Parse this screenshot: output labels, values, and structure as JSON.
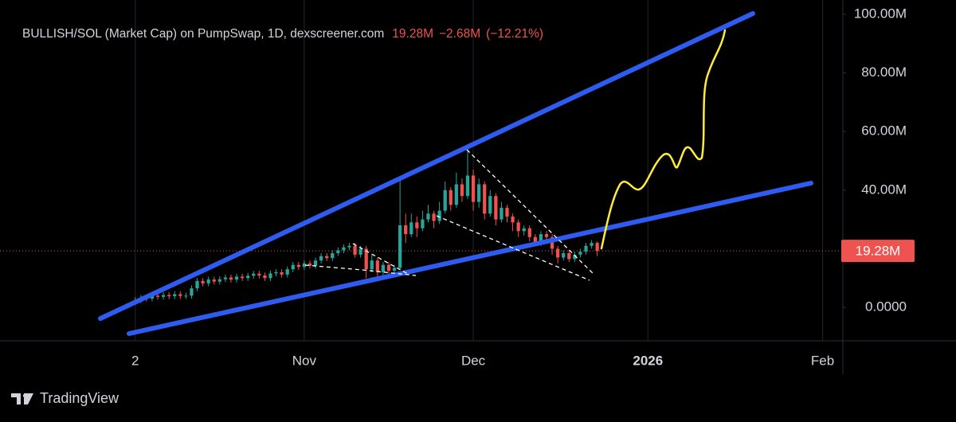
{
  "chart_data": {
    "type": "candlestick",
    "title": "BULLISH/SOL (Market Cap) on PumpSwap, 1D, dexscreener.com",
    "legend_values": [
      "19.28M",
      "−2.68M",
      "(−12.21%)"
    ],
    "footer": "TradingView",
    "up_color": "#26a69a",
    "down_color": "#ef5350",
    "xgrid": true,
    "xlim": [
      -24,
      125.6
    ],
    "xticks": [
      {
        "value": 0,
        "label": "2"
      },
      {
        "value": 30,
        "label": "Nov"
      },
      {
        "value": 60,
        "label": "Dec"
      },
      {
        "value": 91,
        "label": "2026"
      },
      {
        "value": 122,
        "label": "Feb"
      }
    ],
    "ylim": [
      -11.4,
      104.9
    ],
    "yticks": [
      {
        "value": 0,
        "label": "0.0000"
      },
      {
        "value": 40,
        "label": "40.00M"
      },
      {
        "value": 60,
        "label": "60.00M"
      },
      {
        "value": 80,
        "label": "80.00M"
      },
      {
        "value": 100,
        "label": "100.00M"
      }
    ],
    "last_price": {
      "value": 19.28,
      "label": "19.28M"
    },
    "x": [
      0,
      1,
      2,
      3,
      4,
      5,
      6,
      7,
      8,
      9,
      10,
      11,
      12,
      13,
      14,
      15,
      16,
      17,
      18,
      19,
      20,
      21,
      22,
      23,
      24,
      25,
      26,
      27,
      28,
      29,
      30,
      31,
      32,
      33,
      34,
      35,
      36,
      37,
      38,
      39,
      40,
      41,
      42,
      43,
      44,
      45,
      46,
      47,
      48,
      49,
      50,
      51,
      52,
      53,
      54,
      55,
      56,
      57,
      58,
      59,
      60,
      61,
      62,
      63,
      64,
      65,
      66,
      67,
      68,
      69,
      70,
      71,
      72,
      73,
      74,
      75,
      76,
      77,
      78,
      79,
      80,
      81,
      82
    ],
    "open": [
      2.0,
      2.5,
      3.2,
      3.0,
      4.0,
      3.6,
      4.2,
      3.8,
      4.5,
      3.9,
      4.0,
      6.5,
      9.0,
      8.2,
      9.5,
      8.8,
      9.6,
      10.2,
      9.5,
      10.5,
      10.0,
      10.8,
      11.5,
      10.9,
      10.0,
      11.6,
      12.0,
      11.2,
      13.0,
      14.5,
      13.8,
      15.0,
      14.2,
      16.0,
      17.5,
      16.8,
      18.5,
      19.5,
      20.5,
      21.0,
      18.0,
      20.0,
      13.0,
      16.0,
      12.0,
      14.5,
      12.5,
      13.5,
      28.0,
      25.0,
      29.0,
      27.0,
      30.0,
      32.0,
      29.5,
      33.0,
      40.0,
      35.0,
      42.0,
      38.0,
      45.0,
      36.0,
      42.0,
      32.0,
      38.0,
      30.0,
      34.0,
      31.0,
      29.0,
      26.0,
      27.0,
      24.0,
      22.0,
      25.0,
      24.0,
      20.0,
      17.0,
      18.5,
      16.5,
      18.0,
      19.0,
      21.0,
      22.0
    ],
    "high": [
      3.5,
      4.2,
      4.2,
      5.0,
      5.0,
      5.2,
      5.2,
      5.5,
      5.5,
      5.0,
      7.5,
      10.0,
      10.0,
      10.5,
      10.5,
      10.6,
      11.2,
      11.2,
      11.5,
      11.5,
      11.8,
      12.5,
      12.5,
      11.9,
      12.6,
      13.0,
      13.0,
      14.0,
      15.5,
      15.5,
      16.0,
      16.0,
      17.0,
      18.5,
      18.5,
      19.5,
      20.5,
      21.5,
      22.0,
      22.0,
      21.0,
      21.0,
      18.0,
      17.0,
      15.5,
      15.5,
      14.5,
      44.0,
      32.0,
      32.0,
      31.0,
      33.0,
      35.0,
      33.0,
      36.0,
      43.0,
      41.0,
      46.0,
      44.0,
      54.0,
      47.0,
      44.0,
      43.0,
      40.0,
      39.0,
      36.0,
      35.0,
      32.0,
      30.0,
      28.0,
      28.0,
      25.0,
      26.0,
      26.0,
      25.0,
      21.0,
      19.5,
      19.5,
      19.0,
      20.0,
      22.0,
      23.0,
      22.5
    ],
    "low": [
      1.0,
      1.5,
      2.0,
      2.0,
      2.6,
      2.6,
      2.8,
      2.8,
      2.9,
      2.9,
      3.0,
      5.5,
      7.2,
      7.2,
      7.8,
      7.8,
      8.6,
      8.5,
      8.5,
      9.0,
      9.0,
      9.8,
      9.9,
      9.0,
      9.0,
      10.6,
      10.2,
      10.2,
      12.0,
      12.8,
      12.8,
      13.2,
      13.2,
      15.0,
      15.8,
      15.8,
      17.5,
      18.5,
      19.5,
      17.0,
      17.0,
      10.0,
      12.0,
      10.0,
      11.0,
      11.5,
      11.5,
      13.0,
      22.0,
      24.0,
      24.0,
      26.0,
      29.0,
      27.0,
      28.5,
      32.0,
      33.0,
      34.0,
      36.0,
      37.0,
      33.0,
      34.0,
      30.0,
      31.0,
      28.0,
      29.0,
      29.0,
      26.0,
      24.0,
      24.5,
      22.5,
      21.0,
      21.0,
      22.0,
      18.0,
      15.0,
      16.0,
      15.5,
      15.5,
      17.0,
      18.0,
      20.0,
      17.5
    ],
    "close": [
      2.5,
      3.2,
      3.0,
      4.0,
      3.6,
      4.2,
      3.8,
      4.5,
      3.9,
      4.0,
      6.5,
      9.0,
      8.2,
      9.5,
      8.8,
      9.6,
      10.2,
      9.5,
      10.5,
      10.0,
      10.8,
      11.5,
      10.9,
      10.0,
      11.6,
      12.0,
      11.2,
      13.0,
      14.5,
      13.8,
      15.0,
      14.2,
      16.0,
      17.5,
      16.8,
      18.5,
      19.5,
      20.5,
      21.0,
      18.0,
      20.0,
      13.0,
      16.0,
      12.0,
      14.5,
      12.5,
      13.5,
      28.0,
      25.0,
      29.0,
      27.0,
      30.0,
      32.0,
      29.5,
      33.0,
      40.0,
      35.0,
      42.0,
      38.0,
      45.0,
      36.0,
      42.0,
      32.0,
      38.0,
      30.0,
      34.0,
      31.0,
      29.0,
      26.0,
      27.0,
      24.0,
      22.0,
      25.0,
      24.0,
      20.0,
      17.0,
      18.5,
      16.5,
      18.0,
      19.0,
      21.0,
      22.0,
      19.28
    ]
  }
}
